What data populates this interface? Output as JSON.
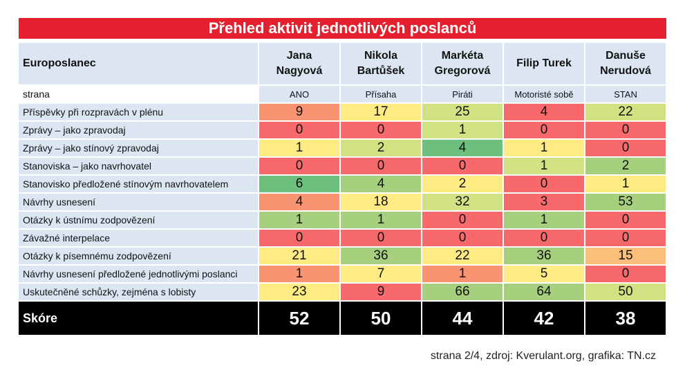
{
  "title": "Přehled aktivit jednotlivých poslanců",
  "header": {
    "label": "Europoslanec",
    "party_label": "strana",
    "mps": [
      {
        "name_line1": "Jana",
        "name_line2": "Nagyová",
        "party": "ANO"
      },
      {
        "name_line1": "Nikola",
        "name_line2": "Bartůšek",
        "party": "Přísaha"
      },
      {
        "name_line1": "Markéta",
        "name_line2": "Gregorová",
        "party": "Piráti"
      },
      {
        "name_line1": "Filip Turek",
        "name_line2": "",
        "party": "Motoristé sobě"
      },
      {
        "name_line1": "Danuše",
        "name_line2": "Nerudová",
        "party": "STAN"
      }
    ]
  },
  "rows": [
    {
      "label": "Příspěvky při rozpravách v plénu",
      "values": [
        "9",
        "17",
        "25",
        "4",
        "22"
      ],
      "colors": [
        "#f99473",
        "#ffeb84",
        "#d1e283",
        "#f8696b",
        "#d1e283"
      ]
    },
    {
      "label": "Zprávy – jako zpravodaj",
      "values": [
        "0",
        "0",
        "1",
        "0",
        "0"
      ],
      "colors": [
        "#f8696b",
        "#f8696b",
        "#d1e283",
        "#f8696b",
        "#f8696b"
      ]
    },
    {
      "label": "Zprávy – jako stínový zpravodaj",
      "values": [
        "1",
        "2",
        "4",
        "1",
        "0"
      ],
      "colors": [
        "#ffeb84",
        "#d1e283",
        "#6cbf7c",
        "#ffeb84",
        "#f8696b"
      ]
    },
    {
      "label": "Stanoviska – jako navrhovatel",
      "values": [
        "0",
        "0",
        "0",
        "1",
        "2"
      ],
      "colors": [
        "#f8696b",
        "#f8696b",
        "#f8696b",
        "#d1e283",
        "#a7d07e"
      ]
    },
    {
      "label": "Stanovisko předložené stínovým navrhovatelem",
      "values": [
        "6",
        "4",
        "2",
        "0",
        "1"
      ],
      "colors": [
        "#6cbf7c",
        "#a7d07e",
        "#ffeb84",
        "#f8696b",
        "#ffeb84"
      ]
    },
    {
      "label": "Návrhy usnesení",
      "values": [
        "4",
        "18",
        "32",
        "3",
        "53"
      ],
      "colors": [
        "#f99473",
        "#ffeb84",
        "#d1e283",
        "#f8696b",
        "#a7d07e"
      ]
    },
    {
      "label": "Otázky k ústnímu zodpovězení",
      "values": [
        "1",
        "1",
        "0",
        "1",
        "0"
      ],
      "colors": [
        "#a7d07e",
        "#a7d07e",
        "#f8696b",
        "#a7d07e",
        "#f8696b"
      ]
    },
    {
      "label": "Závažné interpelace",
      "values": [
        "0",
        "0",
        "0",
        "0",
        "0"
      ],
      "colors": [
        "#f8696b",
        "#f8696b",
        "#f8696b",
        "#f8696b",
        "#f8696b"
      ]
    },
    {
      "label": "Otázky k písemnému zodpovězení",
      "values": [
        "21",
        "36",
        "22",
        "36",
        "15"
      ],
      "colors": [
        "#ffeb84",
        "#a7d07e",
        "#ffeb84",
        "#a7d07e",
        "#fcbf7b"
      ]
    },
    {
      "label": "Návrhy usnesení předložené jednotlivými poslanci",
      "values": [
        "1",
        "7",
        "1",
        "5",
        "0"
      ],
      "colors": [
        "#f99473",
        "#ffeb84",
        "#f99473",
        "#ffeb84",
        "#f8696b"
      ]
    },
    {
      "label": "Uskutečněné schůzky, zejména s lobisty",
      "values": [
        "23",
        "9",
        "66",
        "64",
        "50"
      ],
      "colors": [
        "#ffeb84",
        "#f8696b",
        "#a7d07e",
        "#a7d07e",
        "#d1e283"
      ]
    }
  ],
  "score": {
    "label": "Skóre",
    "values": [
      "52",
      "50",
      "44",
      "42",
      "38"
    ]
  },
  "footer": "strana 2/4, zdroj: Kverulant.org, grafika: TN.cz"
}
